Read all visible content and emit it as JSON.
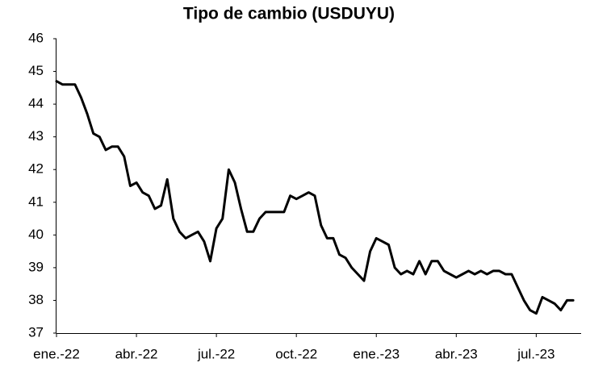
{
  "chart_data": {
    "type": "line",
    "title": "Tipo de cambio (USDUYU)",
    "categories": [
      "ene.-22",
      null,
      null,
      null,
      null,
      null,
      null,
      null,
      null,
      null,
      null,
      null,
      null,
      "abr.-22",
      null,
      null,
      null,
      null,
      null,
      null,
      null,
      null,
      null,
      null,
      null,
      null,
      "jul.-22",
      null,
      null,
      null,
      null,
      null,
      null,
      null,
      null,
      null,
      null,
      null,
      null,
      "oct.-22",
      null,
      null,
      null,
      null,
      null,
      null,
      null,
      null,
      null,
      null,
      null,
      null,
      "ene.-23",
      null,
      null,
      null,
      null,
      null,
      null,
      null,
      null,
      null,
      null,
      null,
      null,
      "abr.-23",
      null,
      null,
      null,
      null,
      null,
      null,
      null,
      null,
      null,
      null,
      null,
      null,
      "jul.-23",
      null,
      null,
      null,
      null,
      null,
      null
    ],
    "values": [
      44.7,
      44.6,
      44.6,
      44.6,
      44.2,
      43.7,
      43.1,
      43.0,
      42.6,
      42.7,
      42.7,
      42.4,
      41.5,
      41.6,
      41.3,
      41.2,
      40.8,
      40.9,
      41.7,
      40.5,
      40.1,
      39.9,
      40.0,
      40.1,
      39.8,
      39.2,
      40.2,
      40.5,
      42.0,
      41.6,
      40.8,
      40.1,
      40.1,
      40.5,
      40.7,
      40.7,
      40.7,
      40.7,
      41.2,
      41.1,
      41.2,
      41.3,
      41.2,
      40.3,
      39.9,
      39.9,
      39.4,
      39.3,
      39.0,
      38.8,
      38.6,
      39.5,
      39.9,
      39.8,
      39.7,
      39.0,
      38.8,
      38.9,
      38.8,
      39.2,
      38.8,
      39.2,
      39.2,
      38.9,
      38.8,
      38.7,
      38.8,
      38.9,
      38.8,
      38.9,
      38.8,
      38.9,
      38.9,
      38.8,
      38.8,
      38.4,
      38.0,
      37.7,
      37.6,
      38.1,
      38.0,
      37.9,
      37.7,
      38.0,
      38.0
    ],
    "color": "#000000",
    "ylim": [
      37,
      46
    ],
    "yticks": [
      37,
      38,
      39,
      40,
      41,
      42,
      43,
      44,
      45,
      46
    ],
    "grid": false
  }
}
